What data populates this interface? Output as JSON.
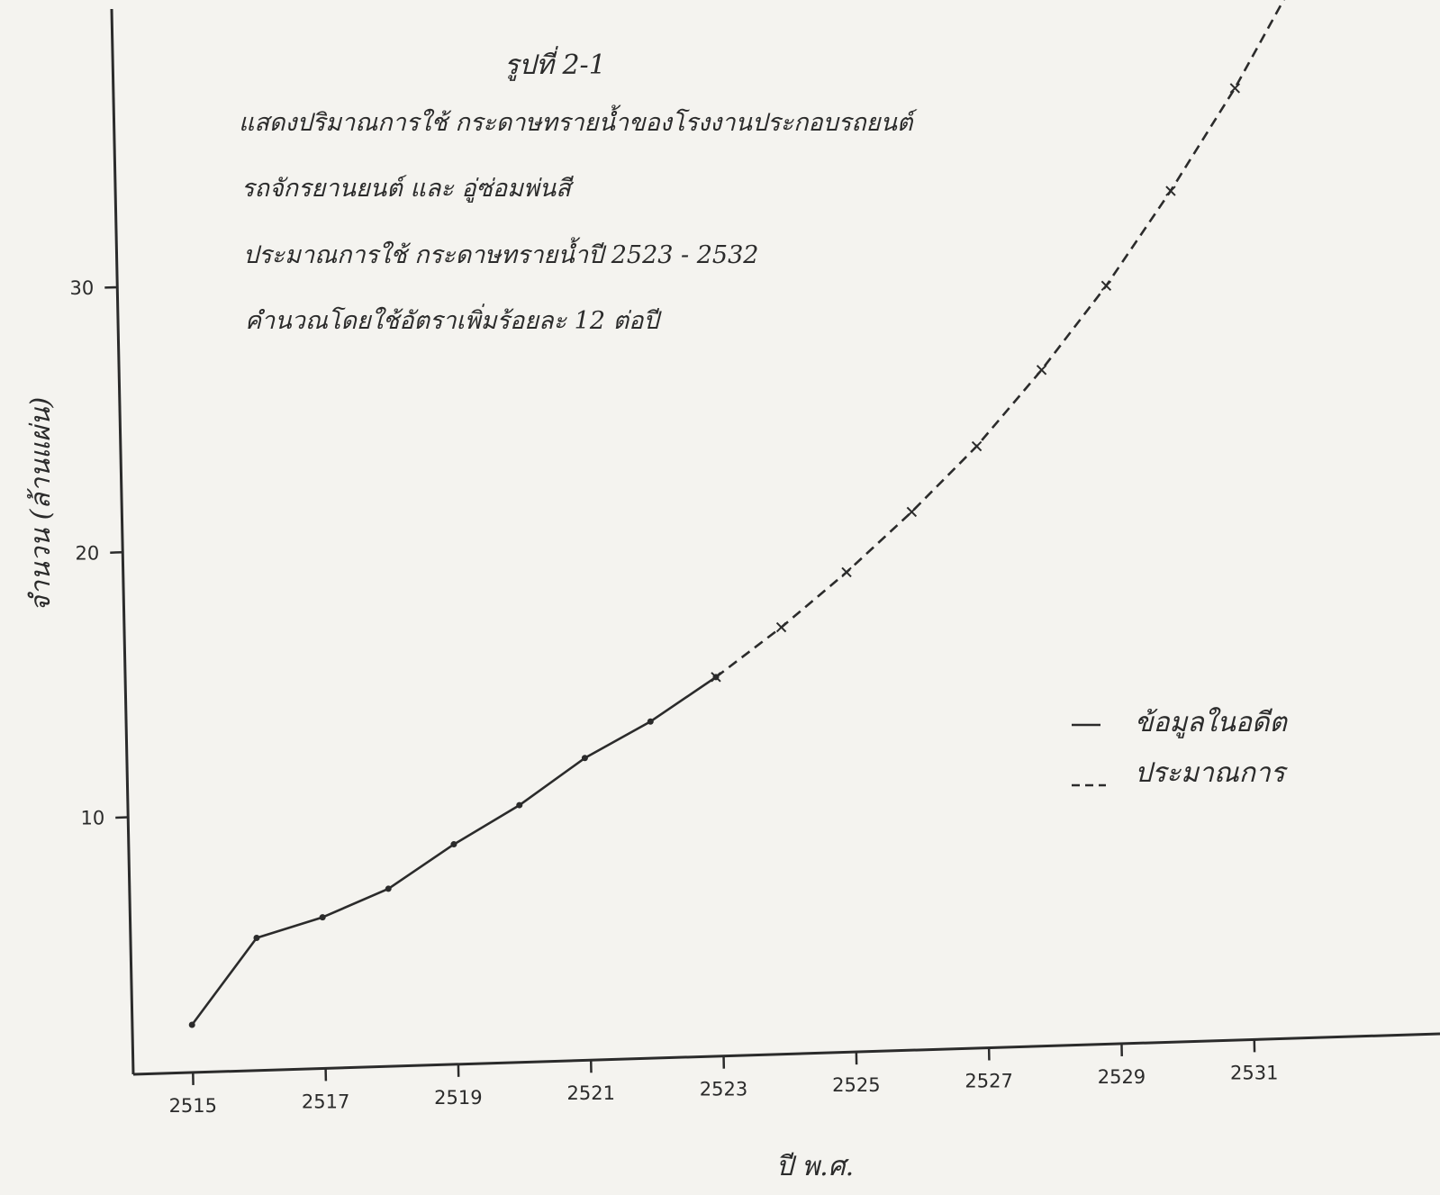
{
  "chart_data": {
    "type": "line",
    "figure_label": "รูปที่ 2-1",
    "title_lines": [
      "แสดงปริมาณการใช้ กระดาษทรายน้ำของโรงงานประกอบรถยนต์",
      "รถจักรยานยนต์ และ อู่ซ่อมพ่นสี",
      "ประมาณการใช้ กระดาษทรายน้ำปี 2523 - 2532",
      "คำนวณโดยใช้อัตราเพิ่มร้อยละ 12 ต่อปี"
    ],
    "xlabel": "ปี พ.ศ.",
    "ylabel": "จำนวน (ล้านแผ่น)",
    "x_ticks": [
      2515,
      2517,
      2519,
      2521,
      2523,
      2525,
      2527,
      2529,
      2531
    ],
    "y_ticks": [
      10,
      20,
      30
    ],
    "xlim": [
      2514.1,
      2533.8
    ],
    "ylim": [
      0.3,
      40.5
    ],
    "grid": false,
    "legend_position": "right",
    "series": [
      {
        "name": "ข้อมูลในอดีต",
        "style": "solid",
        "color": "#2b2b2b",
        "x": [
          2515,
          2516,
          2517,
          2518,
          2519,
          2520,
          2521,
          2522,
          2523
        ],
        "y": [
          2.1,
          5.3,
          6.0,
          7.0,
          8.6,
          10.0,
          11.7,
          13.0,
          14.6
        ]
      },
      {
        "name": "ประมาณการ",
        "style": "dashed",
        "color": "#2b2b2b",
        "x": [
          2523,
          2524,
          2525,
          2526,
          2527,
          2528,
          2529,
          2530,
          2531,
          2532
        ],
        "y": [
          14.6,
          16.4,
          18.4,
          20.6,
          23.0,
          25.8,
          28.9,
          32.4,
          36.2,
          40.5
        ]
      }
    ]
  }
}
